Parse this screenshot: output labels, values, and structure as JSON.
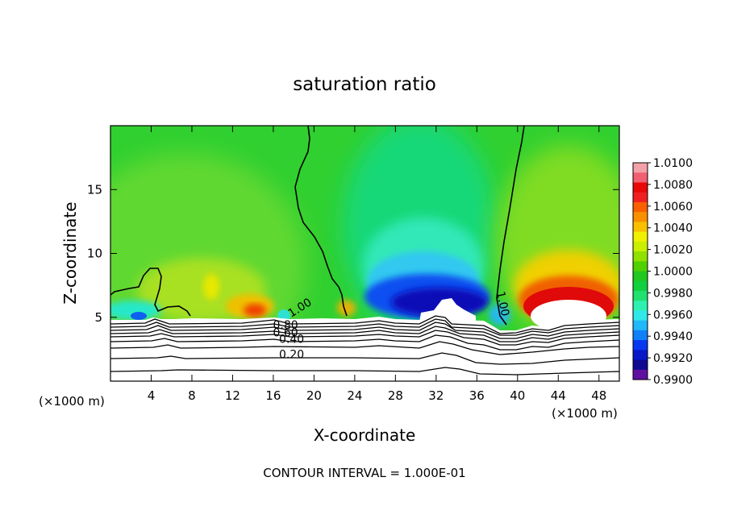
{
  "chart_data": {
    "type": "heatmap",
    "title": "saturation ratio",
    "xlabel": "X-coordinate",
    "ylabel": "Z-coordinate",
    "x_unit_label": "(×1000 m)",
    "x_unit_label_right": "(×1000 m)",
    "xlim": [
      0,
      50
    ],
    "ylim": [
      0,
      20
    ],
    "x_ticks": [
      4,
      8,
      12,
      16,
      20,
      24,
      28,
      32,
      36,
      40,
      44,
      48
    ],
    "y_ticks": [
      5,
      10,
      15
    ],
    "footer": "CONTOUR INTERVAL = 1.000E-01",
    "colorbar": {
      "min": 0.99,
      "max": 1.01,
      "labels": [
        "1.0100",
        "1.0080",
        "1.0060",
        "1.0040",
        "1.0020",
        "1.0000",
        "0.9980",
        "0.9960",
        "0.9940",
        "0.9920",
        "0.9900"
      ],
      "colors": [
        "#f4a0a8",
        "#f06070",
        "#e80808",
        "#f02020",
        "#f86000",
        "#f89000",
        "#f8c000",
        "#f0f000",
        "#c8f000",
        "#90e000",
        "#50d000",
        "#20c820",
        "#10d040",
        "#20e070",
        "#30f0b0",
        "#30e8e8",
        "#20b8f8",
        "#1080f8",
        "#0838f0",
        "#0818c8",
        "#100890",
        "#6010a0"
      ]
    },
    "contour_labels": [
      "1.00",
      "1.00",
      "0.80",
      "0.60",
      "0.40",
      "0.20"
    ],
    "surface_contour_levels": [
      0.1,
      0.2,
      0.3,
      0.4,
      0.5,
      0.6,
      0.7,
      0.8,
      0.9
    ]
  }
}
